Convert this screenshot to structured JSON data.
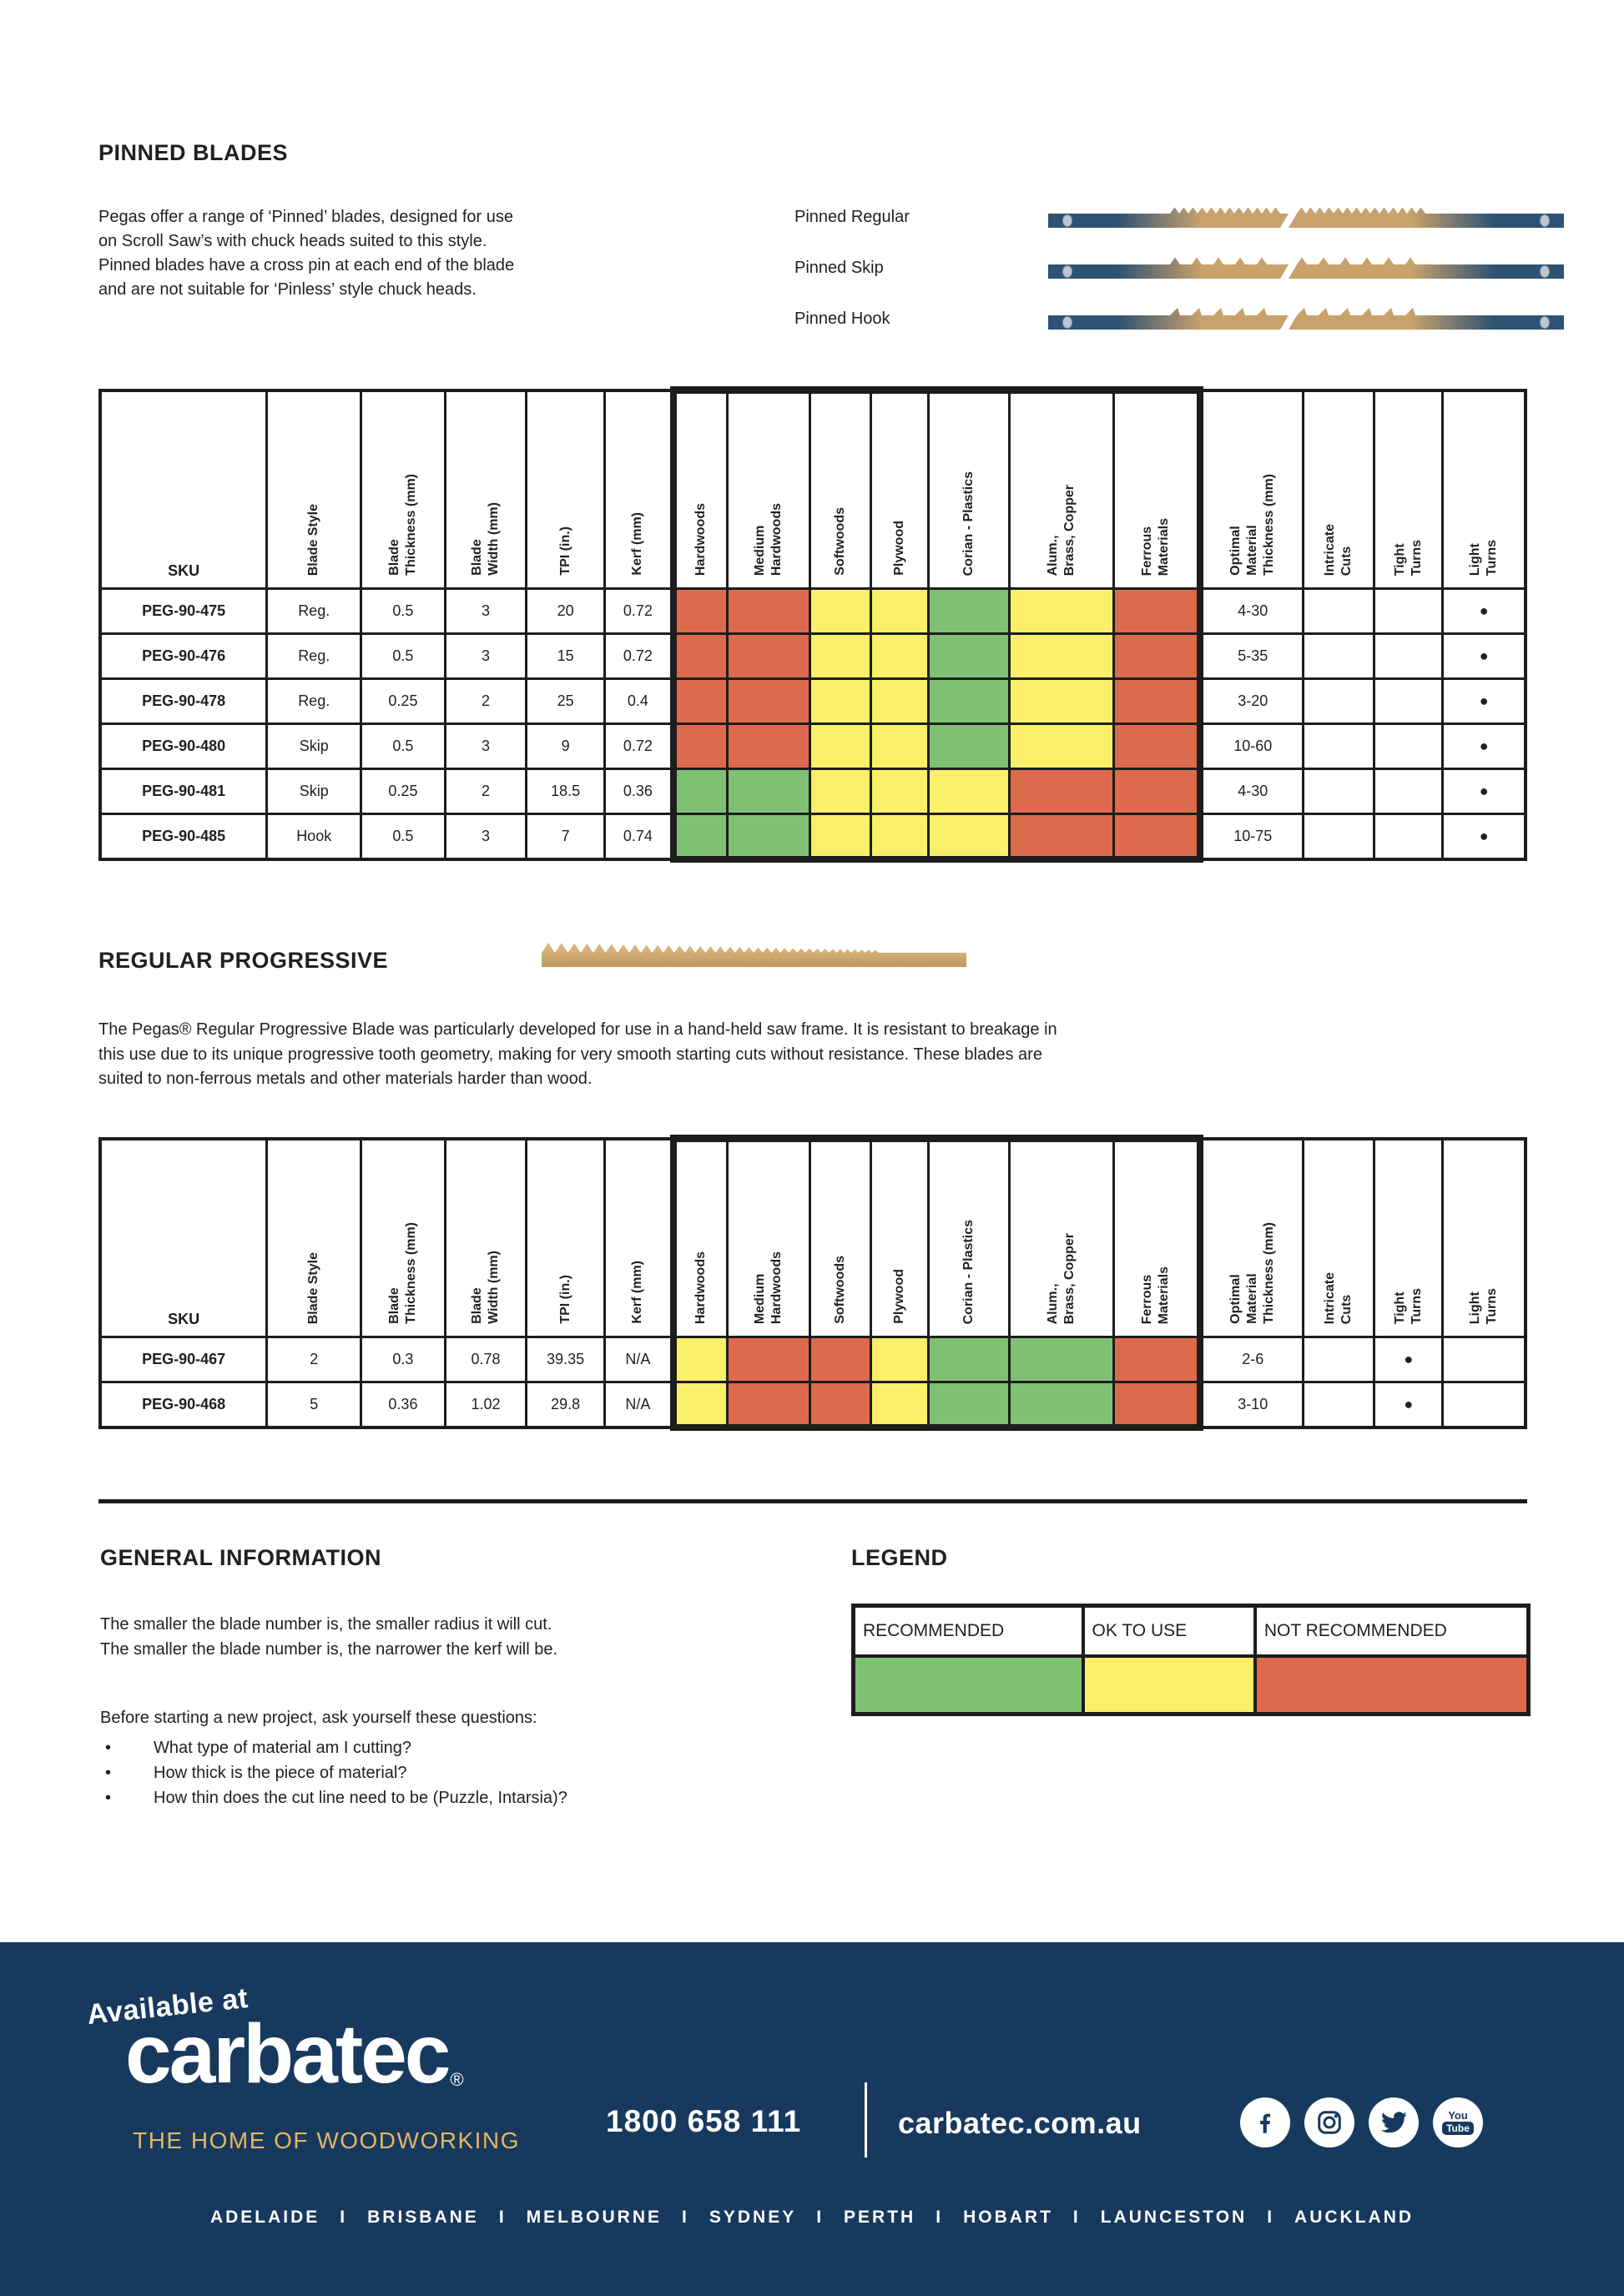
{
  "colors": {
    "recommended": "#7FC173",
    "ok_to_use": "#F9EF68",
    "not_recommended": "#DE6A4E",
    "footer_navy": "#17395E",
    "brand_gold": "#E5B660",
    "blade_navy": "#2E5274",
    "blade_tan": "#C9A26B"
  },
  "pinned": {
    "title": "PINNED BLADES",
    "intro": "Pegas offer a range of ‘Pinned’ blades, designed for use\non Scroll Saw’s with chuck heads suited to this style.\nPinned blades have a cross pin at each end of the blade\nand are not suitable for ‘Pinless’ style chuck heads.",
    "blade_types": [
      {
        "label": "Pinned Regular",
        "tooth_style": "regular"
      },
      {
        "label": "Pinned Skip",
        "tooth_style": "skip"
      },
      {
        "label": "Pinned Hook",
        "tooth_style": "hook"
      }
    ]
  },
  "table_headers": [
    "SKU",
    "Blade Style",
    "Blade\nThickness (mm)",
    "Blade\nWidth (mm)",
    "TPI (in.)",
    "Kerf (mm)",
    "Hardwoods",
    "Medium\nHardwoods",
    "Softwoods",
    "Plywood",
    "Corian  - Plastics",
    "Alum.,\nBrass, Copper",
    "Ferrous\nMaterials",
    "Optimal\nMaterial\nThickness (mm)",
    "Intricate\nCuts",
    "Tight\nTurns",
    "Light\nTurns"
  ],
  "pinned_table": {
    "rows": [
      {
        "sku": "PEG-90-475",
        "style": "Reg.",
        "thickness": "0.5",
        "width": "3",
        "tpi": "20",
        "kerf": "0.72",
        "materials": [
          "no",
          "no",
          "ok",
          "ok",
          "yes",
          "ok",
          "no"
        ],
        "optimal": "4-30",
        "intricate": "",
        "tight": "",
        "light": "●"
      },
      {
        "sku": "PEG-90-476",
        "style": "Reg.",
        "thickness": "0.5",
        "width": "3",
        "tpi": "15",
        "kerf": "0.72",
        "materials": [
          "no",
          "no",
          "ok",
          "ok",
          "yes",
          "ok",
          "no"
        ],
        "optimal": "5-35",
        "intricate": "",
        "tight": "",
        "light": "●"
      },
      {
        "sku": "PEG-90-478",
        "style": "Reg.",
        "thickness": "0.25",
        "width": "2",
        "tpi": "25",
        "kerf": "0.4",
        "materials": [
          "no",
          "no",
          "ok",
          "ok",
          "yes",
          "ok",
          "no"
        ],
        "optimal": "3-20",
        "intricate": "",
        "tight": "",
        "light": "●"
      },
      {
        "sku": "PEG-90-480",
        "style": "Skip",
        "thickness": "0.5",
        "width": "3",
        "tpi": "9",
        "kerf": "0.72",
        "materials": [
          "no",
          "no",
          "ok",
          "ok",
          "yes",
          "ok",
          "no"
        ],
        "optimal": "10-60",
        "intricate": "",
        "tight": "",
        "light": "●"
      },
      {
        "sku": "PEG-90-481",
        "style": "Skip",
        "thickness": "0.25",
        "width": "2",
        "tpi": "18.5",
        "kerf": "0.36",
        "materials": [
          "yes",
          "yes",
          "ok",
          "ok",
          "ok",
          "no",
          "no"
        ],
        "optimal": "4-30",
        "intricate": "",
        "tight": "",
        "light": "●"
      },
      {
        "sku": "PEG-90-485",
        "style": "Hook",
        "thickness": "0.5",
        "width": "3",
        "tpi": "7",
        "kerf": "0.74",
        "materials": [
          "yes",
          "yes",
          "ok",
          "ok",
          "ok",
          "no",
          "no"
        ],
        "optimal": "10-75",
        "intricate": "",
        "tight": "",
        "light": "●"
      }
    ]
  },
  "progressive": {
    "title": "REGULAR PROGRESSIVE",
    "tooth_style": "progressive",
    "intro": "The Pegas® Regular Progressive Blade was particularly developed for use in a hand-held saw frame. It is resistant to breakage in\nthis use due to its unique progressive tooth geometry, making for very smooth starting cuts without resistance. These blades are\nsuited to non-ferrous metals and other materials harder than wood."
  },
  "progressive_table": {
    "rows": [
      {
        "sku": "PEG-90-467",
        "style": "2",
        "thickness": "0.3",
        "width": "0.78",
        "tpi": "39.35",
        "kerf": "N/A",
        "materials": [
          "ok",
          "no",
          "no",
          "ok",
          "yes",
          "yes",
          "no"
        ],
        "optimal": "2-6",
        "intricate": "",
        "tight": "●",
        "light": ""
      },
      {
        "sku": "PEG-90-468",
        "style": "5",
        "thickness": "0.36",
        "width": "1.02",
        "tpi": "29.8",
        "kerf": "N/A",
        "materials": [
          "ok",
          "no",
          "no",
          "ok",
          "yes",
          "yes",
          "no"
        ],
        "optimal": "3-10",
        "intricate": "",
        "tight": "●",
        "light": ""
      }
    ]
  },
  "general": {
    "title": "GENERAL INFORMATION",
    "lines": "The smaller the blade number is, the smaller radius it will cut.\nThe smaller the blade number is, the narrower the kerf will be.",
    "question_intro": "Before starting a new project, ask yourself these questions:",
    "bullets": [
      "What type of material am I cutting?",
      "How thick is the piece of material?",
      "How thin does the cut line need to be (Puzzle, Intarsia)?"
    ]
  },
  "legend": {
    "title": "LEGEND",
    "items": [
      {
        "label": "RECOMMENDED",
        "color": "#7FC173"
      },
      {
        "label": "OK TO USE",
        "color": "#F9EF68"
      },
      {
        "label": "NOT RECOMMENDED",
        "color": "#DE6A4E"
      }
    ]
  },
  "footer": {
    "available_at": "Available at",
    "brand": "carbatec",
    "registered_mark": "®",
    "tagline": "THE HOME OF WOODWORKING",
    "phone": "1800 658 111",
    "website": "carbatec.com.au",
    "social": [
      "facebook",
      "instagram",
      "twitter",
      "youtube"
    ],
    "cities": [
      "ADELAIDE",
      "BRISBANE",
      "MELBOURNE",
      "SYDNEY",
      "PERTH",
      "HOBART",
      "LAUNCESTON",
      "AUCKLAND"
    ],
    "city_separator": "I"
  }
}
